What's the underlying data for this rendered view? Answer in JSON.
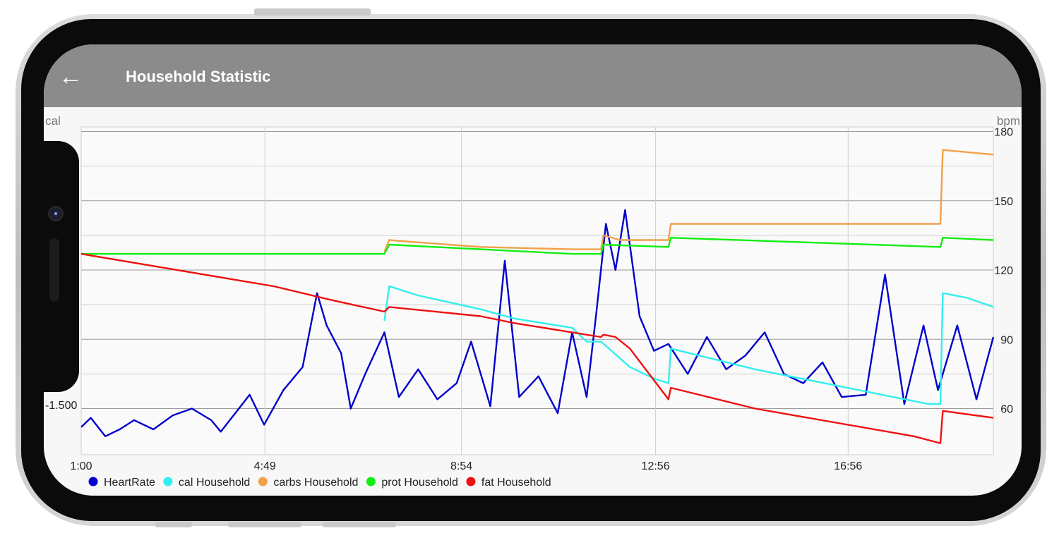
{
  "app_bar": {
    "back_icon": "arrow-left-icon",
    "back_glyph": "←",
    "title": "Household Statistic"
  },
  "chart_data": {
    "type": "line",
    "left_axis_unit": "cal",
    "right_axis_unit": "bpm",
    "left_axis_tick_labels": [
      "-1.500"
    ],
    "right_axis_ticks": [
      60,
      90,
      120,
      150,
      180
    ],
    "right_ylim": [
      40,
      182
    ],
    "x_tick_labels": [
      "1:00",
      "4:49",
      "8:54",
      "12:56",
      "16:56"
    ],
    "x_tick_hours": [
      1.0,
      4.817,
      8.9,
      12.933,
      16.933
    ],
    "x_range_hours": [
      1.0,
      19.95
    ],
    "grid": true,
    "legend_position": "bottom-left",
    "colors": {
      "heart": "#0000cc",
      "cal": "#33eeee",
      "carbs": "#f0a04b",
      "prot": "#11ee11",
      "fat": "#ee1111"
    },
    "series": [
      {
        "name": "HeartRate",
        "axis": "right",
        "color": "#0000cc",
        "points": [
          [
            1.0,
            52
          ],
          [
            1.2,
            56
          ],
          [
            1.5,
            48
          ],
          [
            1.8,
            51
          ],
          [
            2.1,
            55
          ],
          [
            2.5,
            51
          ],
          [
            2.9,
            57
          ],
          [
            3.3,
            60
          ],
          [
            3.7,
            55
          ],
          [
            3.9,
            50
          ],
          [
            4.2,
            58
          ],
          [
            4.5,
            66
          ],
          [
            4.8,
            53
          ],
          [
            5.2,
            68
          ],
          [
            5.6,
            78
          ],
          [
            5.9,
            110
          ],
          [
            6.1,
            96
          ],
          [
            6.4,
            84
          ],
          [
            6.6,
            60
          ],
          [
            6.9,
            75
          ],
          [
            7.3,
            93
          ],
          [
            7.6,
            65
          ],
          [
            8.0,
            77
          ],
          [
            8.4,
            64
          ],
          [
            8.8,
            71
          ],
          [
            9.1,
            89
          ],
          [
            9.5,
            61
          ],
          [
            9.8,
            124
          ],
          [
            10.1,
            65
          ],
          [
            10.5,
            74
          ],
          [
            10.9,
            58
          ],
          [
            11.2,
            93
          ],
          [
            11.5,
            65
          ],
          [
            11.7,
            101
          ],
          [
            11.9,
            140
          ],
          [
            12.1,
            120
          ],
          [
            12.3,
            146
          ],
          [
            12.6,
            100
          ],
          [
            12.9,
            85
          ],
          [
            13.2,
            88
          ],
          [
            13.6,
            75
          ],
          [
            14.0,
            91
          ],
          [
            14.4,
            77
          ],
          [
            14.8,
            83
          ],
          [
            15.2,
            93
          ],
          [
            15.6,
            75
          ],
          [
            16.0,
            71
          ],
          [
            16.4,
            80
          ],
          [
            16.8,
            65
          ],
          [
            17.3,
            66
          ],
          [
            17.7,
            118
          ],
          [
            18.1,
            62
          ],
          [
            18.5,
            96
          ],
          [
            18.8,
            68
          ],
          [
            19.2,
            96
          ],
          [
            19.6,
            64
          ],
          [
            19.95,
            91
          ]
        ]
      },
      {
        "name": "cal Household",
        "axis": "right",
        "color": "#33eeee",
        "points": [
          [
            7.3,
            98
          ],
          [
            7.4,
            113
          ],
          [
            8.0,
            109
          ],
          [
            9.3,
            103
          ],
          [
            10.0,
            99
          ],
          [
            11.2,
            95
          ],
          [
            11.5,
            89
          ],
          [
            11.8,
            89
          ],
          [
            12.4,
            78
          ],
          [
            12.9,
            73
          ],
          [
            13.2,
            71
          ],
          [
            13.25,
            86
          ],
          [
            15.0,
            77
          ],
          [
            18.6,
            62
          ],
          [
            18.85,
            62
          ],
          [
            18.9,
            110
          ],
          [
            19.4,
            108
          ],
          [
            19.95,
            104
          ]
        ]
      },
      {
        "name": "carbs Household",
        "axis": "right",
        "color": "#f0a04b",
        "points": [
          [
            7.3,
            128
          ],
          [
            7.4,
            133
          ],
          [
            8.0,
            132
          ],
          [
            9.3,
            130
          ],
          [
            11.2,
            129
          ],
          [
            11.8,
            129
          ],
          [
            11.85,
            135
          ],
          [
            12.2,
            133
          ],
          [
            13.2,
            133
          ],
          [
            13.25,
            140
          ],
          [
            18.85,
            140
          ],
          [
            18.9,
            172
          ],
          [
            19.95,
            170
          ]
        ]
      },
      {
        "name": "prot Household",
        "axis": "right",
        "color": "#11ee11",
        "points": [
          [
            1.0,
            127
          ],
          [
            7.3,
            127
          ],
          [
            7.4,
            131
          ],
          [
            9.3,
            129
          ],
          [
            11.2,
            127
          ],
          [
            11.8,
            127
          ],
          [
            11.85,
            131
          ],
          [
            13.2,
            130
          ],
          [
            13.25,
            134
          ],
          [
            18.85,
            130
          ],
          [
            18.9,
            134
          ],
          [
            19.95,
            133
          ]
        ]
      },
      {
        "name": "fat Household",
        "axis": "right",
        "color": "#ee1111",
        "points": [
          [
            1.0,
            127
          ],
          [
            5.0,
            113
          ],
          [
            6.2,
            107
          ],
          [
            7.3,
            102
          ],
          [
            7.4,
            104
          ],
          [
            9.3,
            100
          ],
          [
            10.0,
            97
          ],
          [
            11.2,
            93
          ],
          [
            11.8,
            91
          ],
          [
            11.85,
            92
          ],
          [
            12.1,
            91
          ],
          [
            12.4,
            86
          ],
          [
            13.2,
            64
          ],
          [
            13.25,
            69
          ],
          [
            15.0,
            60
          ],
          [
            18.3,
            48
          ],
          [
            18.85,
            45
          ],
          [
            18.9,
            59
          ],
          [
            19.95,
            56
          ]
        ]
      }
    ]
  }
}
